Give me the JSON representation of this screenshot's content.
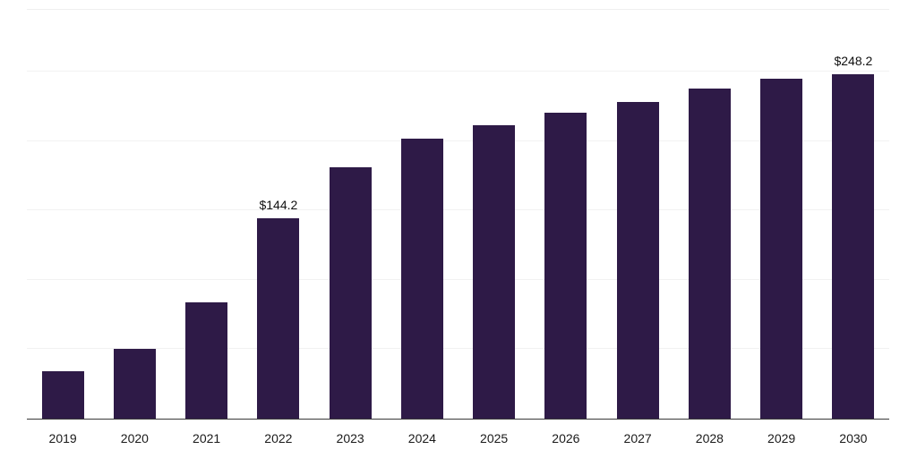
{
  "chart_data": {
    "type": "bar",
    "title": "",
    "xlabel": "",
    "ylabel": "",
    "categories": [
      "2019",
      "2020",
      "2021",
      "2022",
      "2023",
      "2024",
      "2025",
      "2026",
      "2027",
      "2028",
      "2029",
      "2030"
    ],
    "values": [
      34,
      50,
      84,
      144.2,
      181,
      201.5,
      211,
      220,
      228,
      237.5,
      245,
      248.2
    ],
    "data_labels": [
      "",
      "",
      "",
      "$144.2",
      "",
      "",
      "",
      "",
      "",
      "",
      "",
      "$248.2"
    ],
    "ylim": [
      0,
      295
    ],
    "grid_step": 50,
    "grid": true,
    "legend": false,
    "bar_color": "#2E1A47",
    "axis_color": "#3a3a3a",
    "gridline_color": "#f2f2f2",
    "label_color": "#1a1a1a"
  }
}
